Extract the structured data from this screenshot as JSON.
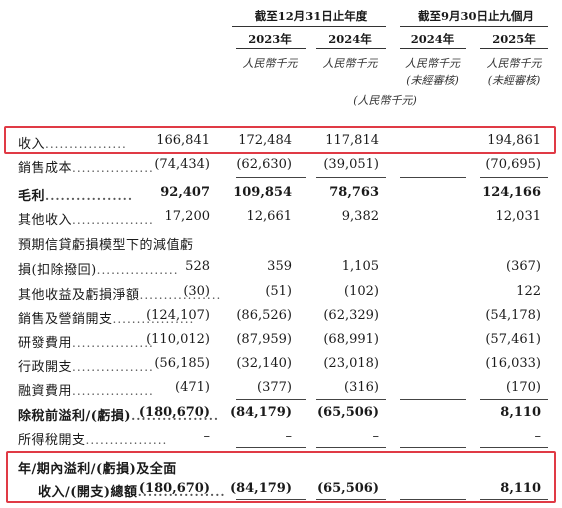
{
  "header": {
    "group1": "截至12月31日止年度",
    "group2": "截至9月30日止九個月",
    "years": [
      "2023年",
      "2024年",
      "2024年",
      "2025年"
    ],
    "units": [
      "人民幣千元",
      "人民幣千元",
      "人民幣千元",
      "人民幣千元"
    ],
    "unaudited": "(未經審核)",
    "unit_note": "(人民幣千元)"
  },
  "rows": [
    {
      "label": "收入",
      "values": [
        "166,841",
        "172,484",
        "117,814",
        "194,861"
      ]
    },
    {
      "label": "銷售成本",
      "values": [
        "(74,434)",
        "(62,630)",
        "(39,051)",
        "(70,695)"
      ]
    },
    {
      "label": "毛利",
      "values": [
        "92,407",
        "109,854",
        "78,763",
        "124,166"
      ]
    },
    {
      "label": "其他收入",
      "values": [
        "17,200",
        "12,661",
        "9,382",
        "12,031"
      ]
    },
    {
      "label": "預期信貸虧損模型下的減值虧",
      "values": []
    },
    {
      "label": "損(扣除撥回)",
      "values": [
        "528",
        "359",
        "1,105",
        "(367)"
      ]
    },
    {
      "label": "其他收益及虧損淨額",
      "values": [
        "(30)",
        "(51)",
        "(102)",
        "122"
      ]
    },
    {
      "label": "銷售及營銷開支",
      "values": [
        "(124,107)",
        "(86,526)",
        "(62,329)",
        "(54,178)"
      ]
    },
    {
      "label": "研發費用",
      "values": [
        "(110,012)",
        "(87,959)",
        "(68,991)",
        "(57,461)"
      ]
    },
    {
      "label": "行政開支",
      "values": [
        "(56,185)",
        "(32,140)",
        "(23,018)",
        "(16,033)"
      ]
    },
    {
      "label": "融資費用",
      "values": [
        "(471)",
        "(377)",
        "(316)",
        "(170)"
      ]
    },
    {
      "label": "除稅前溢利/(虧損)",
      "values": [
        "(180,670)",
        "(84,179)",
        "(65,506)",
        "8,110"
      ]
    },
    {
      "label": "所得稅開支",
      "values": [
        "–",
        "–",
        "–",
        "–"
      ]
    },
    {
      "label": "年/期內溢利/(虧損)及全面",
      "values": []
    },
    {
      "label": "收入/(開支)總額",
      "values": [
        "(180,670)",
        "(84,179)",
        "(65,506)",
        "8,110"
      ]
    }
  ],
  "dots": ".................",
  "highlight_color": "#e03a45"
}
